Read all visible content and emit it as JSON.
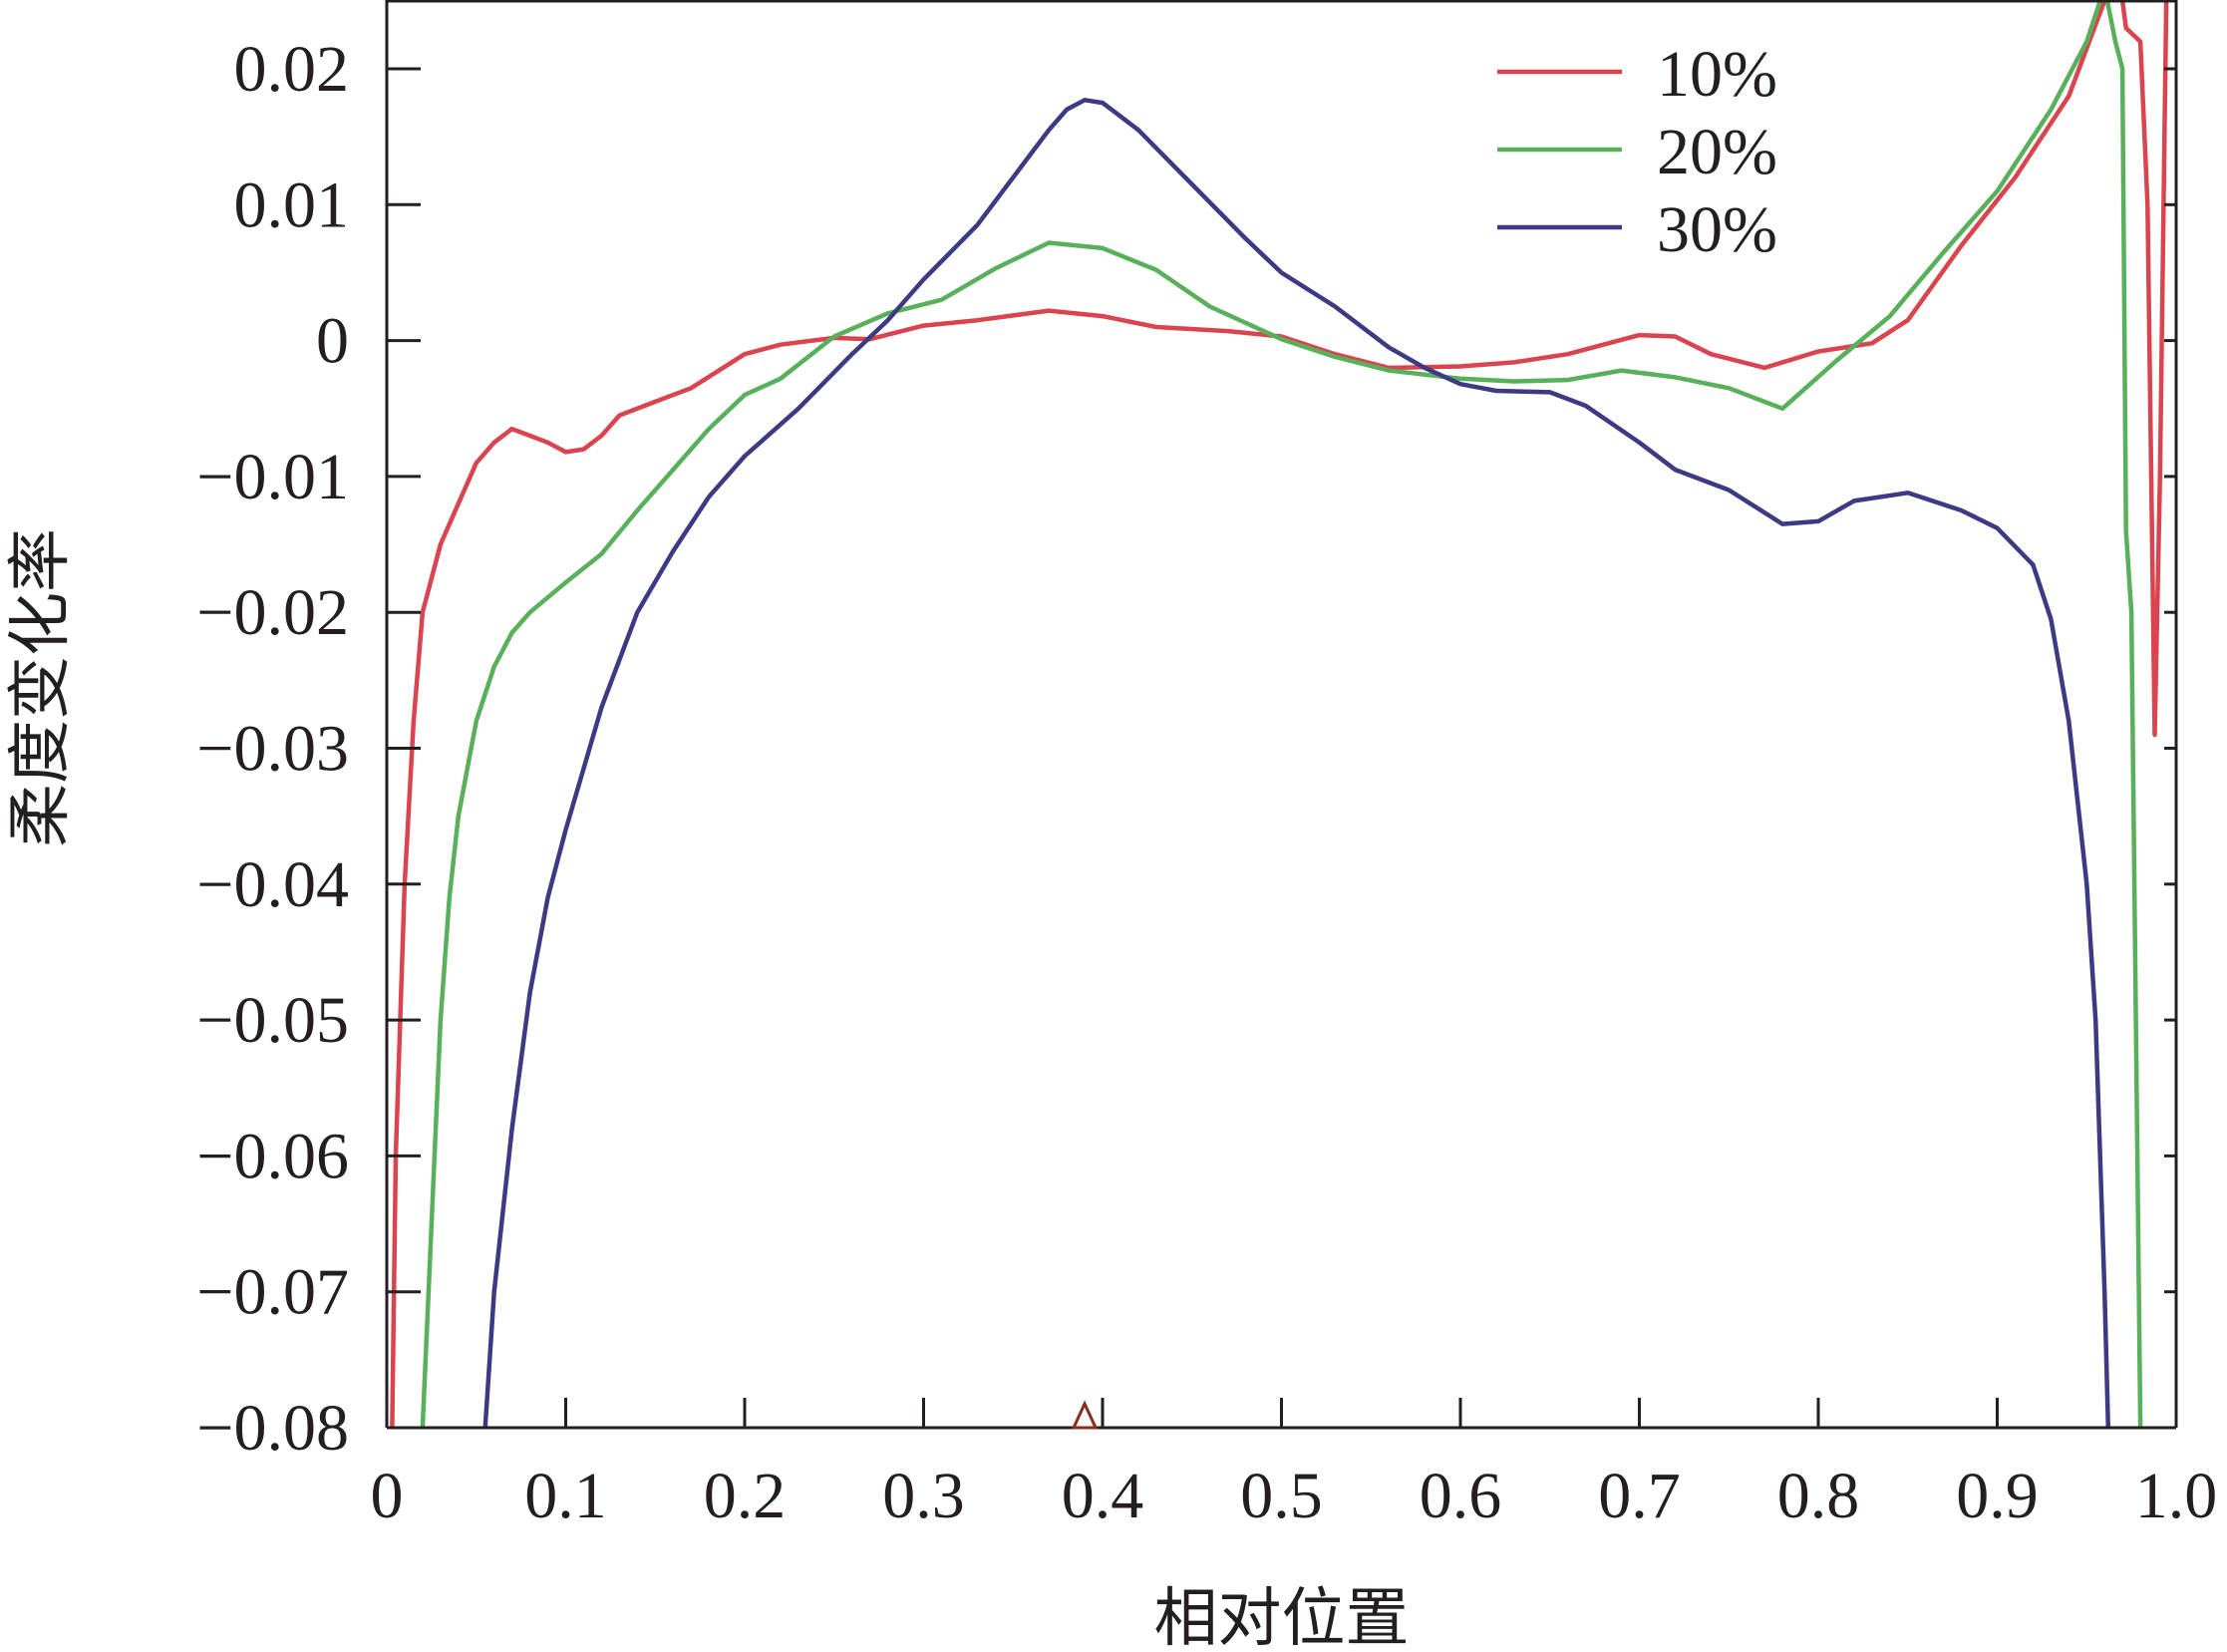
{
  "chart_data": {
    "type": "line",
    "xlabel": "相对位置",
    "ylabel": "柔度变化率",
    "xlim": [
      0,
      1.0
    ],
    "ylim": [
      -0.08,
      0.025
    ],
    "x_ticks": [
      "0",
      "0.1",
      "0.2",
      "0.3",
      "0.4",
      "0.5",
      "0.6",
      "0.7",
      "0.8",
      "0.9",
      "1.0"
    ],
    "y_ticks": [
      "0.02",
      "0.01",
      "0",
      "−0.01",
      "−0.02",
      "−0.03",
      "−0.04",
      "−0.05",
      "−0.06",
      "−0.07",
      "−0.08"
    ],
    "legend_position": "top-right",
    "grid": false,
    "marker": {
      "x": 0.39,
      "y": -0.08
    },
    "series": [
      {
        "name": "10%",
        "color": "#d9444e",
        "points": [
          [
            0.003,
            -0.08
          ],
          [
            0.005,
            -0.06
          ],
          [
            0.01,
            -0.04
          ],
          [
            0.015,
            -0.028
          ],
          [
            0.02,
            -0.02
          ],
          [
            0.03,
            -0.015
          ],
          [
            0.04,
            -0.012
          ],
          [
            0.05,
            -0.009
          ],
          [
            0.06,
            -0.0075
          ],
          [
            0.07,
            -0.0065
          ],
          [
            0.08,
            -0.007
          ],
          [
            0.09,
            -0.0075
          ],
          [
            0.1,
            -0.0082
          ],
          [
            0.11,
            -0.008
          ],
          [
            0.12,
            -0.007
          ],
          [
            0.13,
            -0.0055
          ],
          [
            0.15,
            -0.0045
          ],
          [
            0.17,
            -0.0035
          ],
          [
            0.2,
            -0.001
          ],
          [
            0.22,
            -0.0003
          ],
          [
            0.25,
            0.0002
          ],
          [
            0.27,
            0.0001
          ],
          [
            0.3,
            0.0011
          ],
          [
            0.33,
            0.0015
          ],
          [
            0.37,
            0.0022
          ],
          [
            0.4,
            0.0018
          ],
          [
            0.43,
            0.001
          ],
          [
            0.47,
            0.0007
          ],
          [
            0.5,
            0.0003
          ],
          [
            0.53,
            -0.001
          ],
          [
            0.56,
            -0.002
          ],
          [
            0.6,
            -0.0019
          ],
          [
            0.63,
            -0.0016
          ],
          [
            0.66,
            -0.001
          ],
          [
            0.7,
            0.0004
          ],
          [
            0.72,
            0.0003
          ],
          [
            0.74,
            -0.001
          ],
          [
            0.77,
            -0.002
          ],
          [
            0.8,
            -0.0008
          ],
          [
            0.83,
            -0.0002
          ],
          [
            0.85,
            0.0015
          ],
          [
            0.88,
            0.007
          ],
          [
            0.91,
            0.012
          ],
          [
            0.94,
            0.018
          ],
          [
            0.96,
            0.025
          ],
          [
            0.965,
            0.03
          ],
          [
            0.972,
            0.023
          ],
          [
            0.98,
            0.022
          ],
          [
            0.984,
            0.01
          ],
          [
            0.988,
            -0.029
          ],
          [
            0.991,
            -0.01
          ],
          [
            0.995,
            0.03
          ]
        ]
      },
      {
        "name": "20%",
        "color": "#58b15a",
        "points": [
          [
            0.02,
            -0.08
          ],
          [
            0.025,
            -0.065
          ],
          [
            0.03,
            -0.05
          ],
          [
            0.035,
            -0.041
          ],
          [
            0.04,
            -0.035
          ],
          [
            0.05,
            -0.028
          ],
          [
            0.06,
            -0.024
          ],
          [
            0.07,
            -0.0215
          ],
          [
            0.08,
            -0.02
          ],
          [
            0.1,
            -0.0178
          ],
          [
            0.12,
            -0.0157
          ],
          [
            0.14,
            -0.0125
          ],
          [
            0.16,
            -0.0095
          ],
          [
            0.18,
            -0.0065
          ],
          [
            0.2,
            -0.004
          ],
          [
            0.22,
            -0.0028
          ],
          [
            0.25,
            0.0003
          ],
          [
            0.28,
            0.002
          ],
          [
            0.31,
            0.003
          ],
          [
            0.34,
            0.0053
          ],
          [
            0.37,
            0.0072
          ],
          [
            0.4,
            0.0068
          ],
          [
            0.43,
            0.0052
          ],
          [
            0.46,
            0.0025
          ],
          [
            0.5,
            0.0001
          ],
          [
            0.53,
            -0.0012
          ],
          [
            0.56,
            -0.0022
          ],
          [
            0.6,
            -0.0028
          ],
          [
            0.63,
            -0.003
          ],
          [
            0.66,
            -0.0029
          ],
          [
            0.69,
            -0.0022
          ],
          [
            0.72,
            -0.0027
          ],
          [
            0.75,
            -0.0035
          ],
          [
            0.78,
            -0.005
          ],
          [
            0.81,
            -0.0015
          ],
          [
            0.84,
            0.0018
          ],
          [
            0.87,
            0.0065
          ],
          [
            0.9,
            0.011
          ],
          [
            0.93,
            0.017
          ],
          [
            0.95,
            0.022
          ],
          [
            0.96,
            0.026
          ],
          [
            0.966,
            0.022
          ],
          [
            0.97,
            0.02
          ],
          [
            0.972,
            -0.014
          ],
          [
            0.975,
            -0.02
          ],
          [
            0.98,
            -0.08
          ]
        ]
      },
      {
        "name": "30%",
        "color": "#3d3a84",
        "points": [
          [
            0.055,
            -0.08
          ],
          [
            0.06,
            -0.07
          ],
          [
            0.07,
            -0.058
          ],
          [
            0.08,
            -0.048
          ],
          [
            0.09,
            -0.041
          ],
          [
            0.1,
            -0.036
          ],
          [
            0.12,
            -0.027
          ],
          [
            0.14,
            -0.02
          ],
          [
            0.16,
            -0.0155
          ],
          [
            0.18,
            -0.0115
          ],
          [
            0.2,
            -0.0085
          ],
          [
            0.23,
            -0.005
          ],
          [
            0.26,
            -0.001
          ],
          [
            0.28,
            0.0015
          ],
          [
            0.3,
            0.0045
          ],
          [
            0.33,
            0.0085
          ],
          [
            0.35,
            0.012
          ],
          [
            0.37,
            0.0155
          ],
          [
            0.38,
            0.017
          ],
          [
            0.39,
            0.0177
          ],
          [
            0.4,
            0.0175
          ],
          [
            0.42,
            0.0155
          ],
          [
            0.45,
            0.0115
          ],
          [
            0.48,
            0.0075
          ],
          [
            0.5,
            0.005
          ],
          [
            0.53,
            0.0025
          ],
          [
            0.56,
            -0.0005
          ],
          [
            0.58,
            -0.002
          ],
          [
            0.6,
            -0.0032
          ],
          [
            0.62,
            -0.0037
          ],
          [
            0.65,
            -0.0038
          ],
          [
            0.67,
            -0.0048
          ],
          [
            0.7,
            -0.0075
          ],
          [
            0.72,
            -0.0095
          ],
          [
            0.75,
            -0.011
          ],
          [
            0.78,
            -0.0135
          ],
          [
            0.8,
            -0.0133
          ],
          [
            0.82,
            -0.0118
          ],
          [
            0.85,
            -0.0112
          ],
          [
            0.88,
            -0.0125
          ],
          [
            0.9,
            -0.0138
          ],
          [
            0.92,
            -0.0165
          ],
          [
            0.93,
            -0.0205
          ],
          [
            0.94,
            -0.028
          ],
          [
            0.95,
            -0.04
          ],
          [
            0.955,
            -0.05
          ],
          [
            0.96,
            -0.07
          ],
          [
            0.962,
            -0.08
          ]
        ]
      }
    ]
  }
}
